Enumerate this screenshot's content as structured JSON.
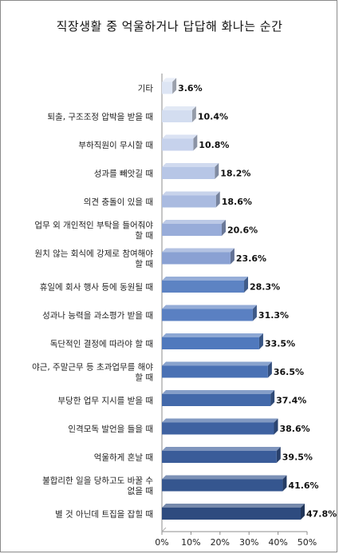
{
  "chart_data": {
    "type": "bar",
    "orientation": "horizontal",
    "title": "직장생활 중 억울하거나 답답해 화나는 순간",
    "categories": [
      "기타",
      "퇴출, 구조조정 압박을 받을 때",
      "부하직원이 무시할 때",
      "성과를 빼앗길 때",
      "의견 충돌이 있을 때",
      "업무 외 개인적인 부탁을 들어줘야 할 때",
      "원치 않는 회식에 강제로 참여해야 할 때",
      "휴일에 회사 행사 등에 동원될 때",
      "성과나 능력을 과소평가 받을 때",
      "독단적인 결정에 따라야 할 때",
      "야근, 주말근무 등 초과업무를 해야 할 때",
      "부당한 업무 지시를 받을 때",
      "인격모독 발언을 들을 때",
      "억울하게 혼날 때",
      "불합리한 일을 당하고도 바꿀 수 없을 때",
      "별 것 아닌데 트집을 잡힐 때"
    ],
    "category_lines": [
      [
        "기타"
      ],
      [
        "퇴출, 구조조정 압박을 받을 때"
      ],
      [
        "부하직원이 무시할 때"
      ],
      [
        "성과를 빼앗길 때"
      ],
      [
        "의견 충돌이 있을 때"
      ],
      [
        "업무 외 개인적인 부탁을 들어줘야",
        "할 때"
      ],
      [
        "원치 않는 회식에 강제로 참여해야",
        "할 때"
      ],
      [
        "휴일에 회사 행사 등에 동원될 때"
      ],
      [
        "성과나 능력을 과소평가 받을 때"
      ],
      [
        "독단적인 결정에 따라야 할 때"
      ],
      [
        "야근, 주말근무 등 초과업무를 해야",
        "할 때"
      ],
      [
        "부당한 업무 지시를 받을 때"
      ],
      [
        "인격모독 발언을 들을 때"
      ],
      [
        "억울하게 혼날 때"
      ],
      [
        "불합리한 일을 당하고도 바꿀 수",
        "없을 때"
      ],
      [
        "별 것 아닌데 트집을 잡힐 때"
      ]
    ],
    "values": [
      3.6,
      10.4,
      10.8,
      18.2,
      18.6,
      20.6,
      23.6,
      28.3,
      31.3,
      33.5,
      36.5,
      37.4,
      38.6,
      39.5,
      41.6,
      47.8
    ],
    "value_labels": [
      "3.6%",
      "10.4%",
      "10.8%",
      "18.2%",
      "18.6%",
      "20.6%",
      "23.6%",
      "28.3%",
      "31.3%",
      "33.5%",
      "36.5%",
      "37.4%",
      "38.6%",
      "39.5%",
      "41.6%",
      "47.8%"
    ],
    "bar_colors": [
      "#dde5f4",
      "#d3ddf0",
      "#c6d2ec",
      "#b7c6e6",
      "#aabbe0",
      "#98acd9",
      "#8aa1d3",
      "#5d83c3",
      "#5a80c2",
      "#5079bd",
      "#4a71b4",
      "#4369aa",
      "#3f62a1",
      "#3a5c99",
      "#35568f",
      "#2e4b7f"
    ],
    "xlim": [
      0,
      50
    ],
    "xticks": [
      0,
      10,
      20,
      30,
      40,
      50
    ],
    "xtick_labels": [
      "0%",
      "10%",
      "20%",
      "30%",
      "40%",
      "50%"
    ],
    "xlabel": "",
    "ylabel": "",
    "grid": false,
    "legend": "none"
  }
}
